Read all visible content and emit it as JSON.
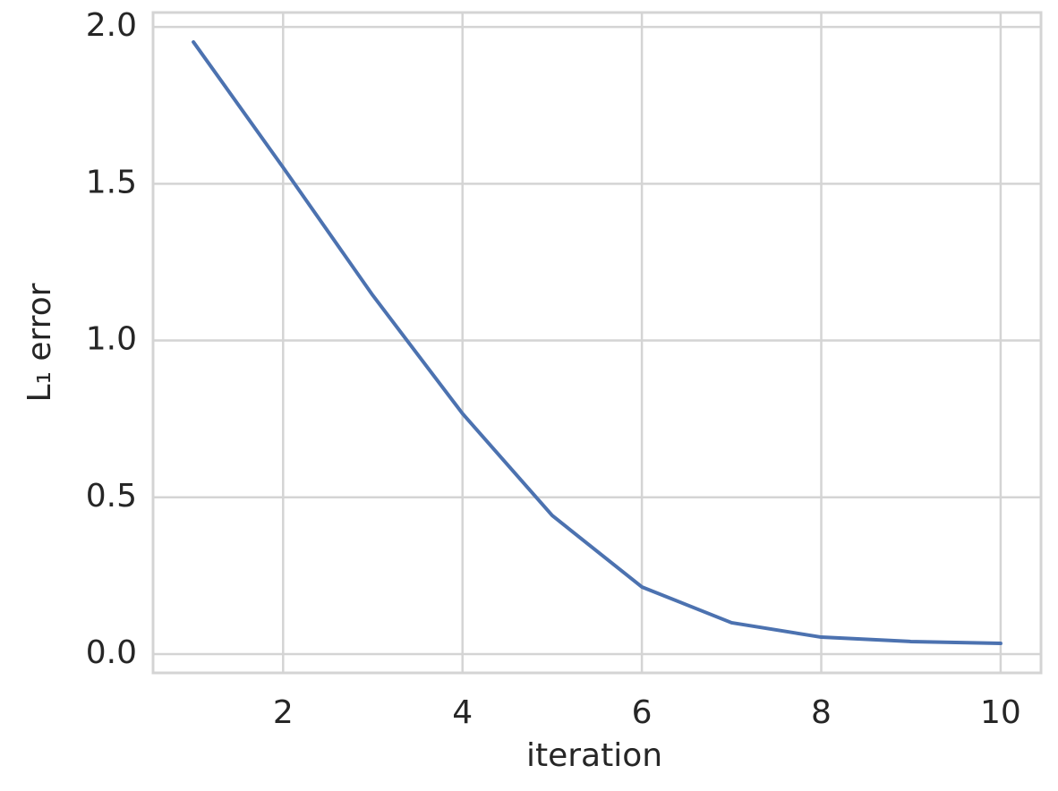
{
  "chart_data": {
    "type": "line",
    "xlabel": "iteration",
    "ylabel": "L₁ error",
    "x": [
      1,
      2,
      3,
      4,
      5,
      6,
      7,
      8,
      9,
      10
    ],
    "series": [
      {
        "color": "#4c72b0",
        "values": [
          1.952,
          1.552,
          1.144,
          0.767,
          0.442,
          0.214,
          0.1,
          0.054,
          0.04,
          0.034
        ]
      }
    ],
    "xlim": [
      0.55,
      10.45
    ],
    "ylim": [
      -0.06,
      2.046
    ],
    "xticks": [
      2,
      4,
      6,
      8,
      10
    ],
    "yticks": [
      {
        "value": 0,
        "label": "0.0"
      },
      0.5,
      {
        "value": 1,
        "label": "1.0"
      },
      1.5,
      {
        "value": 2,
        "label": "2.0"
      }
    ],
    "grid": true
  }
}
